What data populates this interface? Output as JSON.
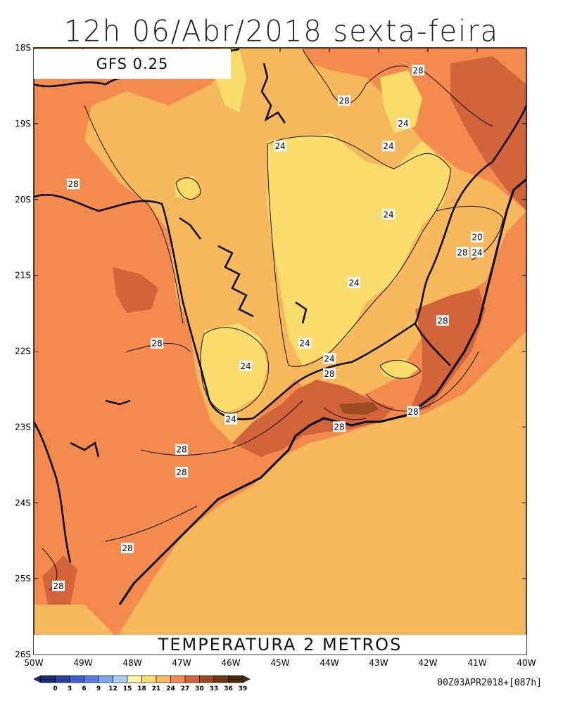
{
  "header": {
    "title": "12h 06/Abr/2018 sexta-feira"
  },
  "model_label": "GFS 0.25",
  "variable_label": "TEMPERATURA 2 METROS",
  "run_info": "00Z03APR2018+[087h]",
  "axes": {
    "lat_labels": [
      "18S",
      "19S",
      "20S",
      "21S",
      "22S",
      "23S",
      "24S",
      "25S",
      "26S"
    ],
    "lon_labels": [
      "50W",
      "49W",
      "48W",
      "47W",
      "46W",
      "45W",
      "44W",
      "43W",
      "42W",
      "41W",
      "40W"
    ]
  },
  "colorbar": {
    "ticks": [
      "0",
      "3",
      "6",
      "9",
      "12",
      "15",
      "18",
      "21",
      "24",
      "27",
      "30",
      "33",
      "36",
      "39"
    ],
    "colors": [
      "#1a2a6c",
      "#2c3f9a",
      "#3f5cc8",
      "#5b7ee0",
      "#7fa6ea",
      "#a9cdf0",
      "#fdf2a8",
      "#f8dc6c",
      "#f7b75c",
      "#f28b4d",
      "#d2643a",
      "#9a4c1e",
      "#6a3a12",
      "#4a2a0a"
    ]
  },
  "contours": {
    "labels": [
      {
        "text": "28",
        "lon": -42.2,
        "lat": -18.3
      },
      {
        "text": "28",
        "lon": -43.7,
        "lat": -18.7
      },
      {
        "text": "24",
        "lon": -42.5,
        "lat": -19.0
      },
      {
        "text": "24",
        "lon": -42.8,
        "lat": -19.3
      },
      {
        "text": "24",
        "lon": -45.0,
        "lat": -19.3
      },
      {
        "text": "28",
        "lon": -49.2,
        "lat": -19.8
      },
      {
        "text": "24",
        "lon": -42.8,
        "lat": -20.2
      },
      {
        "text": "20",
        "lon": -41.0,
        "lat": -20.5
      },
      {
        "text": "28",
        "lon": -41.3,
        "lat": -20.7
      },
      {
        "text": "24",
        "lon": -41.0,
        "lat": -20.7
      },
      {
        "text": "24",
        "lon": -43.5,
        "lat": -21.1
      },
      {
        "text": "28",
        "lon": -41.7,
        "lat": -21.6
      },
      {
        "text": "24",
        "lon": -44.5,
        "lat": -21.9
      },
      {
        "text": "28",
        "lon": -47.5,
        "lat": -21.9
      },
      {
        "text": "24",
        "lon": -44.0,
        "lat": -22.1
      },
      {
        "text": "24",
        "lon": -45.7,
        "lat": -22.2
      },
      {
        "text": "28",
        "lon": -44.0,
        "lat": -22.3
      },
      {
        "text": "28",
        "lon": -42.3,
        "lat": -22.8
      },
      {
        "text": "24",
        "lon": -46.0,
        "lat": -22.9
      },
      {
        "text": "28",
        "lon": -43.8,
        "lat": -23.0
      },
      {
        "text": "28",
        "lon": -47.0,
        "lat": -23.3
      },
      {
        "text": "28",
        "lon": -47.0,
        "lat": -23.6
      },
      {
        "text": "28",
        "lon": -48.1,
        "lat": -24.6
      },
      {
        "text": "28",
        "lon": -49.5,
        "lat": -25.1
      }
    ]
  },
  "fill_colors": {
    "warm_28_30": "#f28b4d",
    "mild_24_27": "#f7b75c",
    "cool_21_24": "#f8dc6c",
    "hot_30_33": "#d2643a",
    "very_hot_33_36": "#9a4c1e"
  }
}
